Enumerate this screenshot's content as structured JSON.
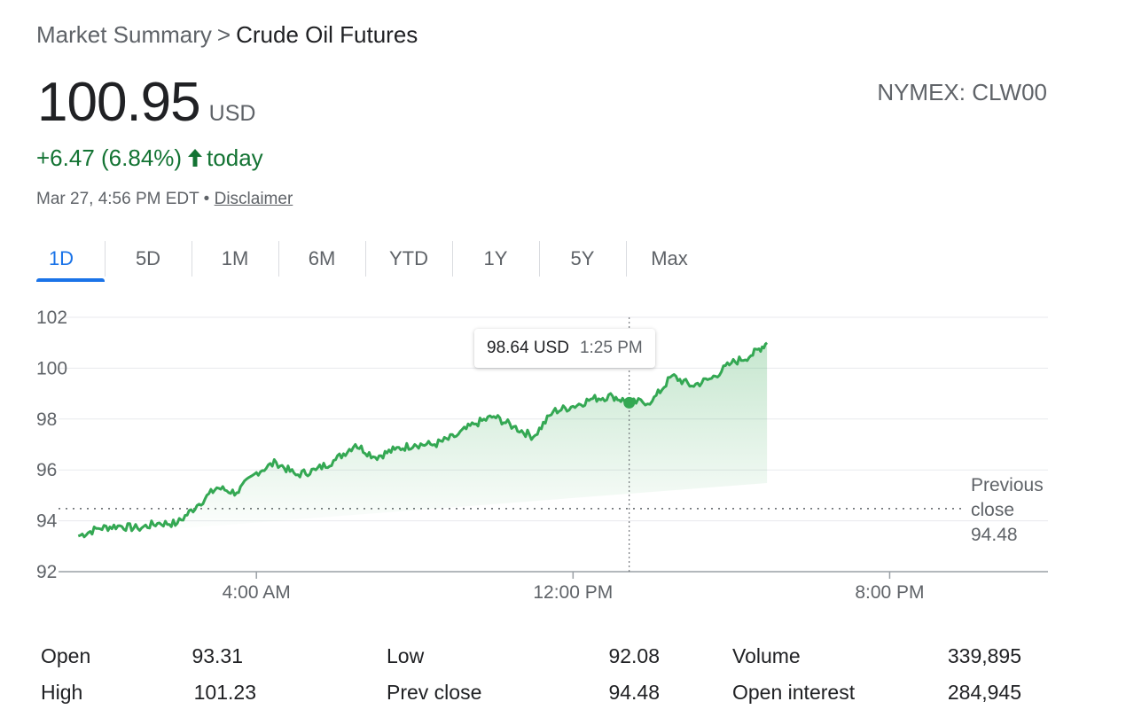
{
  "breadcrumb": {
    "parent": "Market Summary",
    "separator": ">",
    "current": "Crude Oil Futures"
  },
  "quote": {
    "price": "100.95",
    "currency": "USD",
    "exchange": "NYMEX: CLW00",
    "change": "+6.47 (6.84%)",
    "change_suffix": "today",
    "timestamp": "Mar 27, 4:56 PM EDT",
    "timestamp_sep": "•",
    "disclaimer": "Disclaimer"
  },
  "tabs": [
    {
      "label": "1D",
      "active": true
    },
    {
      "label": "5D"
    },
    {
      "label": "1M"
    },
    {
      "label": "6M"
    },
    {
      "label": "YTD"
    },
    {
      "label": "1Y"
    },
    {
      "label": "5Y"
    },
    {
      "label": "Max"
    }
  ],
  "tooltip": {
    "price": "98.64 USD",
    "time": "1:25 PM"
  },
  "prev_close": {
    "line1": "Previous",
    "line2": "close",
    "value": "94.48"
  },
  "colors": {
    "up": "#137333",
    "line": "#34a853",
    "accent": "#1a73e8"
  },
  "chart_data": {
    "type": "area",
    "x_unit": "hour of day",
    "ylim": [
      92,
      102
    ],
    "xlim": [
      -1,
      24
    ],
    "y_ticks": [
      102,
      100,
      98,
      96,
      94,
      92
    ],
    "x_ticks": [
      {
        "x": 4,
        "label": "4:00 AM"
      },
      {
        "x": 12,
        "label": "12:00 PM"
      },
      {
        "x": 20,
        "label": "8:00 PM"
      }
    ],
    "previous_close": 94.48,
    "hover": {
      "x": 13.42,
      "y": 98.64
    },
    "series": [
      {
        "values_x": [
          -0.5,
          0,
          0.5,
          1,
          1.5,
          2,
          2.5,
          3,
          3.5,
          4,
          4.5,
          5,
          5.5,
          6,
          6.5,
          7,
          7.5,
          8,
          8.5,
          9,
          9.5,
          10,
          10.5,
          11,
          11.5,
          12,
          12.5,
          13,
          13.42,
          14,
          14.5,
          15,
          15.5,
          16,
          16.5,
          16.9
        ],
        "values_y": [
          93.4,
          93.7,
          93.8,
          93.7,
          93.9,
          93.9,
          94.6,
          95.3,
          95.1,
          95.9,
          96.3,
          95.8,
          96.0,
          96.4,
          97.0,
          96.5,
          96.8,
          97.0,
          97.0,
          97.3,
          97.8,
          98.1,
          97.7,
          97.3,
          98.3,
          98.5,
          98.8,
          98.9,
          98.64,
          98.7,
          99.7,
          99.3,
          99.6,
          100.2,
          100.5,
          101.0
        ]
      }
    ]
  },
  "stats": [
    {
      "label": "Open",
      "value": "93.31"
    },
    {
      "label": "High",
      "value": "101.23"
    },
    {
      "label": "Low",
      "value": "92.08"
    },
    {
      "label": "Prev close",
      "value": "94.48"
    },
    {
      "label": "Volume",
      "value": "339,895"
    },
    {
      "label": "Open interest",
      "value": "284,945"
    }
  ]
}
